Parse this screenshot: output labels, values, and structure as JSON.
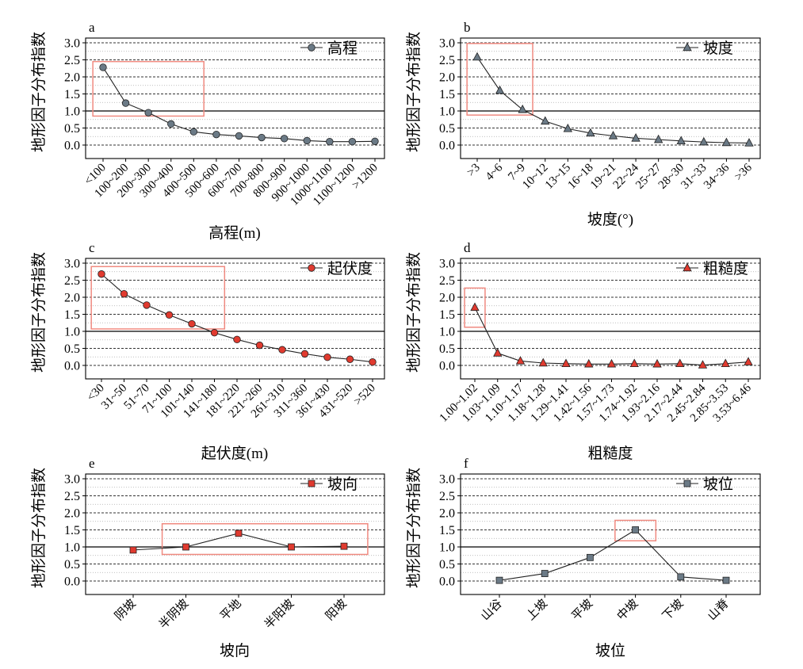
{
  "common": {
    "y_ticks": [
      "3.0",
      "2.5",
      "2.0",
      "1.5",
      "1.0",
      "0.5",
      "0.0"
    ],
    "colors": {
      "gray_marker": "#6b7a86",
      "red_marker": "#e03a2f",
      "highlight_box": "#f08a80",
      "line": "#222222",
      "grid": "#aaaaaa"
    }
  },
  "chart_data": [
    {
      "id": "a",
      "type": "line",
      "panel_label": "a",
      "xlabel": "高程(m)",
      "ylabel": "地形因子分布指数",
      "ylim": [
        0,
        3
      ],
      "legend": {
        "label": "高程",
        "marker": "circle",
        "color": "gray",
        "position": "top-right"
      },
      "categories": [
        "<100",
        "100~200",
        "200~300",
        "300~400",
        "400~500",
        "500~600",
        "600~700",
        "700~800",
        "800~900",
        "900~1000",
        "1000~1100",
        "1100~1200",
        ">1200"
      ],
      "values": [
        2.28,
        1.23,
        0.95,
        0.62,
        0.39,
        0.31,
        0.27,
        0.22,
        0.19,
        0.13,
        0.1,
        0.1,
        0.11
      ],
      "highlight_range": {
        "categories": [
          0,
          4
        ],
        "y": [
          0.85,
          2.45
        ]
      }
    },
    {
      "id": "b",
      "type": "line",
      "panel_label": "b",
      "xlabel": "坡度(°)",
      "ylabel": "地形因子分布指数",
      "ylim": [
        0,
        3
      ],
      "legend": {
        "label": "坡度",
        "marker": "triangle",
        "color": "gray",
        "position": "top-right"
      },
      "categories": [
        ">3",
        "4~6",
        "7~9",
        "10~12",
        "13~15",
        "16~18",
        "19~21",
        "22~24",
        "25~27",
        "28~30",
        "31~33",
        "34~36",
        ">36"
      ],
      "values": [
        2.58,
        1.6,
        1.04,
        0.7,
        0.48,
        0.35,
        0.27,
        0.2,
        0.16,
        0.12,
        0.09,
        0.07,
        0.06
      ],
      "highlight_range": {
        "categories": [
          0,
          2
        ],
        "y": [
          0.88,
          2.98
        ]
      }
    },
    {
      "id": "c",
      "type": "line",
      "panel_label": "c",
      "xlabel": "起伏度(m)",
      "ylabel": "地形因子分布指数",
      "ylim": [
        0,
        3
      ],
      "legend": {
        "label": "起伏度",
        "marker": "circle",
        "color": "red",
        "position": "top-right"
      },
      "categories": [
        "<30",
        "31~50",
        "51~70",
        "71~100",
        "101~140",
        "141~180",
        "181~220",
        "221~260",
        "261~310",
        "311~360",
        "361~430",
        "431~520",
        ">520"
      ],
      "values": [
        2.68,
        2.1,
        1.77,
        1.48,
        1.22,
        0.96,
        0.76,
        0.59,
        0.46,
        0.34,
        0.24,
        0.18,
        0.1
      ],
      "highlight_range": {
        "categories": [
          0,
          5
        ],
        "y": [
          1.07,
          2.9
        ]
      }
    },
    {
      "id": "d",
      "type": "line",
      "panel_label": "d",
      "xlabel": "粗糙度",
      "ylabel": "地形因子分布指数",
      "ylim": [
        0,
        3
      ],
      "legend": {
        "label": "粗糙度",
        "marker": "triangle",
        "color": "red",
        "position": "top-right"
      },
      "categories": [
        "1.00~1.02",
        "1.03~1.09",
        "1.10~1.17",
        "1.18~1.28",
        "1.29~1.41",
        "1.42~1.56",
        "1.57~1.73",
        "1.74~1.92",
        "1.93~2.16",
        "2.17~2.44",
        "2.45~2.84",
        "2.85~3.53",
        "3.53~6.46"
      ],
      "values": [
        1.7,
        0.36,
        0.13,
        0.07,
        0.05,
        0.04,
        0.04,
        0.05,
        0.04,
        0.05,
        0.01,
        0.05,
        0.1
      ],
      "highlight_range": {
        "categories": [
          0,
          0
        ],
        "y": [
          1.12,
          2.27
        ]
      }
    },
    {
      "id": "e",
      "type": "line",
      "panel_label": "e",
      "xlabel": "坡向",
      "ylabel": "地形因子分布指数",
      "ylim": [
        0,
        3
      ],
      "legend": {
        "label": "坡向",
        "marker": "square",
        "color": "red",
        "position": "top-right"
      },
      "categories": [
        "阴坡",
        "半阴坡",
        "平地",
        "半阳坡",
        "阳坡"
      ],
      "values": [
        0.91,
        1.0,
        1.4,
        1.0,
        1.02
      ],
      "highlight_range": {
        "categories": [
          1,
          4
        ],
        "y": [
          0.78,
          1.68
        ]
      }
    },
    {
      "id": "f",
      "type": "line",
      "panel_label": "f",
      "xlabel": "坡位",
      "ylabel": "地形因子分布指数",
      "ylim": [
        0,
        3
      ],
      "legend": {
        "label": "坡位",
        "marker": "square",
        "color": "gray",
        "position": "top-right"
      },
      "categories": [
        "山谷",
        "上坡",
        "平坡",
        "中坡",
        "下坡",
        "山脊"
      ],
      "values": [
        0.02,
        0.22,
        0.69,
        1.5,
        0.12,
        0.02
      ],
      "highlight_range": {
        "categories": [
          3,
          3
        ],
        "y": [
          1.18,
          1.78
        ]
      }
    }
  ]
}
